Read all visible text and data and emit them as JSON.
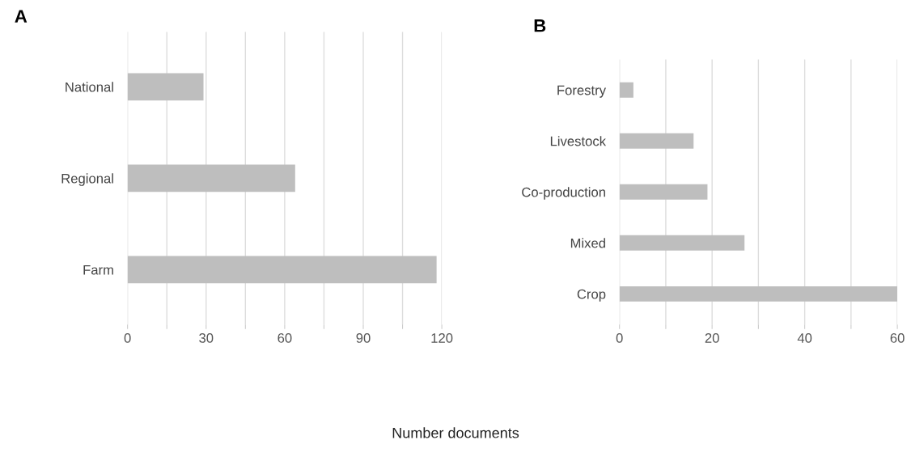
{
  "chart_data": [
    {
      "type": "bar",
      "title": "A",
      "orientation": "horizontal",
      "categories": [
        "National",
        "Regional",
        "Farm"
      ],
      "values": [
        29,
        64,
        118
      ],
      "color": "#bebebe",
      "xlim": [
        0,
        120
      ],
      "xticks": [
        0,
        {
          "value": 15,
          "label": null
        },
        30,
        {
          "value": 45,
          "label": null
        },
        60,
        {
          "value": 75,
          "label": null
        },
        90,
        {
          "value": 105,
          "label": null
        },
        120
      ],
      "grid": "x",
      "annotations": [
        "Number documents"
      ]
    },
    {
      "type": "bar",
      "title": "B",
      "orientation": "horizontal",
      "categories": [
        "Forestry",
        "Livestock",
        "Co-production",
        "Mixed",
        "Crop"
      ],
      "values": [
        3,
        16,
        19,
        27,
        60
      ],
      "color": "#bebebe",
      "xlim": [
        0,
        60
      ],
      "xticks": [
        0,
        {
          "value": 10,
          "label": null
        },
        20,
        {
          "value": 30,
          "label": null
        },
        40,
        {
          "value": 50,
          "label": null
        },
        60
      ],
      "grid": "x"
    }
  ]
}
